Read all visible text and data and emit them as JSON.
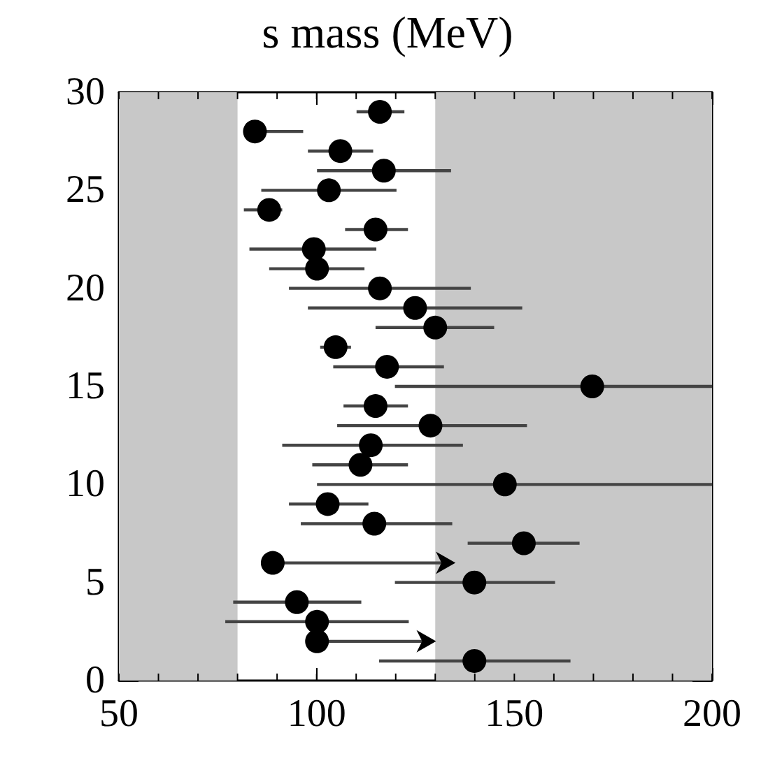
{
  "chart_data": {
    "type": "scatter",
    "title": "s mass (MeV)",
    "x": [
      139.9,
      100.1,
      100.1,
      95.0,
      139.9,
      88.9,
      152.4,
      114.6,
      102.8,
      147.6,
      111.1,
      113.7,
      128.8,
      114.9,
      169.7,
      117.8,
      104.8,
      130.0,
      124.9,
      116.0,
      100.1,
      99.3,
      114.9,
      88.0,
      103.1,
      117.0,
      106.0,
      84.4,
      116.0
    ],
    "values": [
      1,
      2,
      3,
      4,
      5,
      6,
      7,
      8,
      9,
      10,
      11,
      12,
      13,
      14,
      15,
      16,
      17,
      18,
      19,
      20,
      21,
      22,
      23,
      24,
      25,
      26,
      27,
      28,
      29
    ],
    "xerrors": [
      [
        115.8,
        164.2
      ],
      [
        100.1,
        128.8
      ],
      [
        76.9,
        123.3
      ],
      [
        78.9,
        111.3
      ],
      [
        119.8,
        160.3
      ],
      [
        88.9,
        133.7
      ],
      [
        138.2,
        166.5
      ],
      [
        96.0,
        134.3
      ],
      [
        93.0,
        113.1
      ],
      [
        100.1,
        200
      ],
      [
        98.9,
        123.1
      ],
      [
        91.3,
        137.0
      ],
      [
        105.2,
        153.2
      ],
      [
        106.8,
        123.1
      ],
      [
        119.8,
        200
      ],
      [
        104.2,
        132.2
      ],
      [
        100.9,
        108.7
      ],
      [
        114.9,
        144.9
      ],
      [
        97.8,
        152.0
      ],
      [
        93.0,
        139.0
      ],
      [
        88.0,
        112.1
      ],
      [
        83.0,
        115.1
      ],
      [
        107.2,
        123.1
      ],
      [
        81.6,
        91.3
      ],
      [
        86.0,
        120.2
      ],
      [
        100.1,
        134.0
      ],
      [
        97.8,
        114.3
      ],
      [
        82.0,
        96.6
      ],
      [
        110.1,
        122.2
      ]
    ],
    "color": "#000000",
    "marker": "circle",
    "xlim": [
      50,
      200
    ],
    "xticks": [
      50,
      100,
      150,
      200
    ],
    "ylim": [
      0,
      30
    ],
    "yticks": [
      0,
      5,
      10,
      15,
      20,
      25,
      30
    ],
    "bands": [
      {
        "axis": "x",
        "from": 50,
        "to": 80,
        "color": "#c8c8c8"
      },
      {
        "axis": "x",
        "from": 130,
        "to": 200,
        "color": "#c8c8c8"
      }
    ],
    "grid": false
  }
}
